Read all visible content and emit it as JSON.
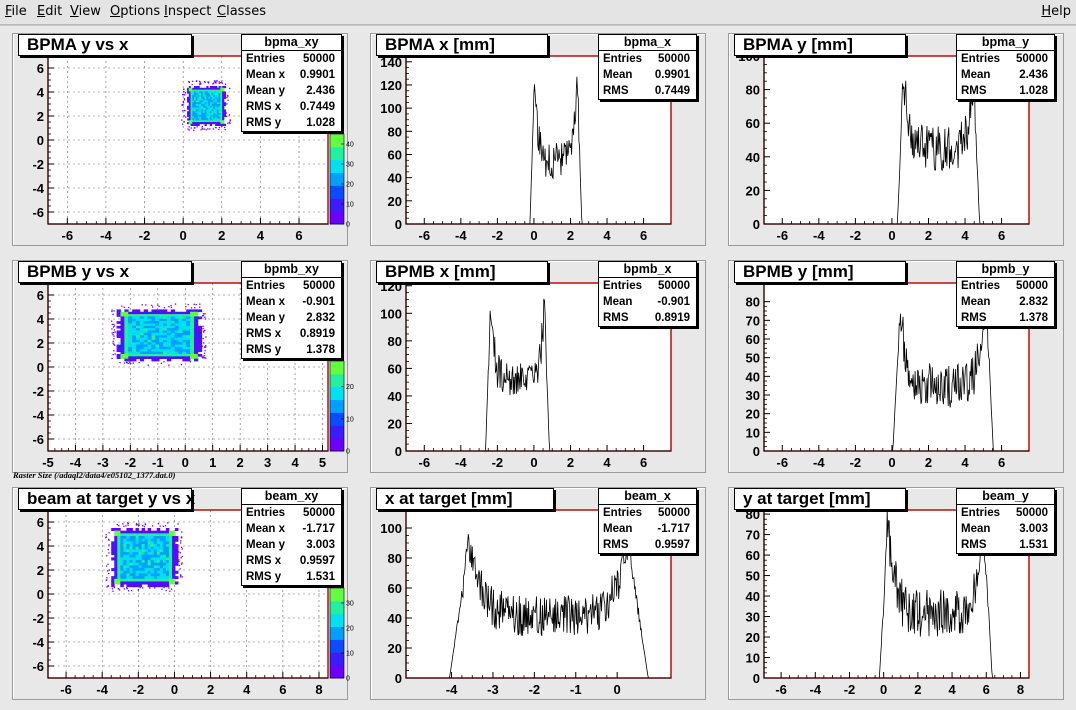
{
  "menubar": {
    "items": [
      {
        "key": "file",
        "label": "File",
        "mnemonic": "F",
        "rest": "ile"
      },
      {
        "key": "edit",
        "label": "Edit",
        "mnemonic": "E",
        "rest": "dit"
      },
      {
        "key": "view",
        "label": "View",
        "mnemonic": "V",
        "rest": "iew"
      },
      {
        "key": "options",
        "label": "Options",
        "mnemonic": "O",
        "rest": "ptions"
      },
      {
        "key": "inspect",
        "label": "Inspect",
        "mnemonic": "I",
        "rest": "nspect"
      },
      {
        "key": "classes",
        "label": "Classes",
        "mnemonic": "C",
        "rest": "lasses"
      }
    ],
    "help": {
      "label": "Help",
      "mnemonic": "H",
      "rest": "elp"
    }
  },
  "raster_caption": "Raster Size (/adaql2/data4/e05102_1377.dat.0)",
  "colors": {
    "frame_red": "#b00000",
    "grid": "#666666",
    "hist_line": "#000000",
    "palette": [
      "#6a00ff",
      "#3a1cff",
      "#0a4cff",
      "#00a0ff",
      "#00e0f0",
      "#20f0a0",
      "#60ff40"
    ]
  },
  "chart_data": [
    {
      "name": "bpma_xy",
      "type": "heatmap",
      "title": "BPMA y vs x",
      "xlim": [
        -7,
        7.5
      ],
      "ylim": [
        -7,
        7
      ],
      "xticks": [
        -6,
        -4,
        -2,
        0,
        2,
        4,
        6
      ],
      "yticks": [
        -6,
        -4,
        -2,
        0,
        2,
        4,
        6
      ],
      "region": {
        "x": [
          0.2,
          2.2
        ],
        "y": [
          1.2,
          4.5
        ]
      },
      "palette_max": 45,
      "palette_ticks": [
        0,
        10,
        20,
        30,
        40
      ],
      "grid": true,
      "stats": [
        [
          "Entries",
          "50000"
        ],
        [
          "Mean x",
          "0.9901"
        ],
        [
          "Mean y",
          "2.436"
        ],
        [
          "RMS x",
          "0.7449"
        ],
        [
          "RMS y",
          "1.028"
        ]
      ]
    },
    {
      "name": "bpma_x",
      "type": "line",
      "title": "BPMA x [mm]",
      "xlim": [
        -7,
        7.5
      ],
      "ylim": [
        0,
        145
      ],
      "xticks": [
        -6,
        -4,
        -2,
        0,
        2,
        4,
        6
      ],
      "yticks": [
        0,
        20,
        40,
        60,
        80,
        100,
        120,
        140
      ],
      "shape": {
        "lo": 0,
        "hi": 2.4,
        "base": 55,
        "peak": 130,
        "noise": 16,
        "edge": 0.22
      },
      "stats": [
        [
          "Entries",
          "50000"
        ],
        [
          "Mean",
          "0.9901"
        ],
        [
          "RMS",
          "0.7449"
        ]
      ]
    },
    {
      "name": "bpma_y",
      "type": "line",
      "title": "BPMA y [mm]",
      "xlim": [
        -7,
        7.5
      ],
      "ylim": [
        0,
        100
      ],
      "xticks": [
        -6,
        -4,
        -2,
        0,
        2,
        4,
        6
      ],
      "yticks": [
        0,
        20,
        40,
        60,
        80,
        100
      ],
      "shape": {
        "lo": 0.6,
        "hi": 4.5,
        "base": 45,
        "peak": 92,
        "noise": 14,
        "edge": 0.3
      },
      "stats": [
        [
          "Entries",
          "50000"
        ],
        [
          "Mean",
          "2.436"
        ],
        [
          "RMS",
          "1.028"
        ]
      ]
    },
    {
      "name": "bpmb_xy",
      "type": "heatmap",
      "title": "BPMB y vs x",
      "xlim": [
        -5,
        5.2
      ],
      "ylim": [
        -7,
        7
      ],
      "xticks": [
        -5,
        -4,
        -3,
        -2,
        -1,
        0,
        1,
        2,
        3,
        4,
        5
      ],
      "yticks": [
        -6,
        -4,
        -2,
        0,
        2,
        4,
        6
      ],
      "region": {
        "x": [
          -2.5,
          0.6
        ],
        "y": [
          0.5,
          4.8
        ]
      },
      "palette_max": 28,
      "palette_ticks": [
        0,
        10,
        20
      ],
      "grid": true,
      "stats": [
        [
          "Entries",
          "50000"
        ],
        [
          "Mean x",
          "-0.901"
        ],
        [
          "Mean y",
          "2.832"
        ],
        [
          "RMS x",
          "0.8919"
        ],
        [
          "RMS y",
          "1.378"
        ]
      ]
    },
    {
      "name": "bpmb_x",
      "type": "line",
      "title": "BPMB x [mm]",
      "xlim": [
        -7,
        7.5
      ],
      "ylim": [
        0,
        122
      ],
      "xticks": [
        -6,
        -4,
        -2,
        0,
        2,
        4,
        6
      ],
      "yticks": [
        0,
        20,
        40,
        60,
        80,
        100,
        120
      ],
      "shape": {
        "lo": -2.4,
        "hi": 0.6,
        "base": 50,
        "peak": 112,
        "noise": 14,
        "edge": 0.25
      },
      "stats": [
        [
          "Entries",
          "50000"
        ],
        [
          "Mean",
          "-0.901"
        ],
        [
          "RMS",
          "0.8919"
        ]
      ]
    },
    {
      "name": "bpmb_y",
      "type": "line",
      "title": "BPMB y [mm]",
      "xlim": [
        -7,
        7.5
      ],
      "ylim": [
        0,
        90
      ],
      "xticks": [
        -6,
        -4,
        -2,
        0,
        2,
        4,
        6
      ],
      "yticks": [
        0,
        10,
        20,
        30,
        40,
        50,
        60,
        70,
        80
      ],
      "shape": {
        "lo": 0.4,
        "hi": 5.2,
        "base": 35,
        "peak": 82,
        "noise": 12,
        "edge": 0.35
      },
      "stats": [
        [
          "Entries",
          "50000"
        ],
        [
          "Mean",
          "2.832"
        ],
        [
          "RMS",
          "1.378"
        ]
      ]
    },
    {
      "name": "beam_xy",
      "type": "heatmap",
      "title": "beam at target y vs x",
      "xlim": [
        -7,
        8.5
      ],
      "ylim": [
        -7,
        7
      ],
      "xticks": [
        -6,
        -4,
        -2,
        0,
        2,
        4,
        6,
        8
      ],
      "yticks": [
        -6,
        -4,
        -2,
        0,
        2,
        4,
        6
      ],
      "region": {
        "x": [
          -3.5,
          0.2
        ],
        "y": [
          0.6,
          5.5
        ]
      },
      "palette_max": 36,
      "palette_ticks": [
        0,
        10,
        20,
        30
      ],
      "grid": true,
      "stats": [
        [
          "Entries",
          "50000"
        ],
        [
          "Mean x",
          "-1.717"
        ],
        [
          "Mean y",
          "3.003"
        ],
        [
          "RMS x",
          "0.9597"
        ],
        [
          "RMS y",
          "1.531"
        ]
      ]
    },
    {
      "name": "beam_x",
      "type": "line",
      "title": "x at target [mm]",
      "xlim": [
        -5.1,
        1.3
      ],
      "ylim": [
        0,
        112
      ],
      "xticks": [
        -4,
        -3,
        -2,
        -1,
        0
      ],
      "yticks": [
        0,
        20,
        40,
        60,
        80,
        100
      ],
      "shape": {
        "lo": -3.6,
        "hi": 0.3,
        "base": 42,
        "peak": 98,
        "noise": 14,
        "edge": 0.45
      },
      "stats": [
        [
          "Entries",
          "50000"
        ],
        [
          "Mean",
          "-1.717"
        ],
        [
          "RMS",
          "0.9597"
        ]
      ]
    },
    {
      "name": "beam_y",
      "type": "line",
      "title": "y at target [mm]",
      "xlim": [
        -7,
        8.5
      ],
      "ylim": [
        0,
        82
      ],
      "xticks": [
        -6,
        -4,
        -2,
        0,
        2,
        4,
        6,
        8
      ],
      "yticks": [
        0,
        10,
        20,
        30,
        40,
        50,
        60,
        70,
        80
      ],
      "shape": {
        "lo": 0.2,
        "hi": 5.9,
        "base": 32,
        "peak": 78,
        "noise": 12,
        "edge": 0.45
      },
      "stats": [
        [
          "Entries",
          "50000"
        ],
        [
          "Mean",
          "3.003"
        ],
        [
          "RMS",
          "1.531"
        ]
      ]
    }
  ]
}
